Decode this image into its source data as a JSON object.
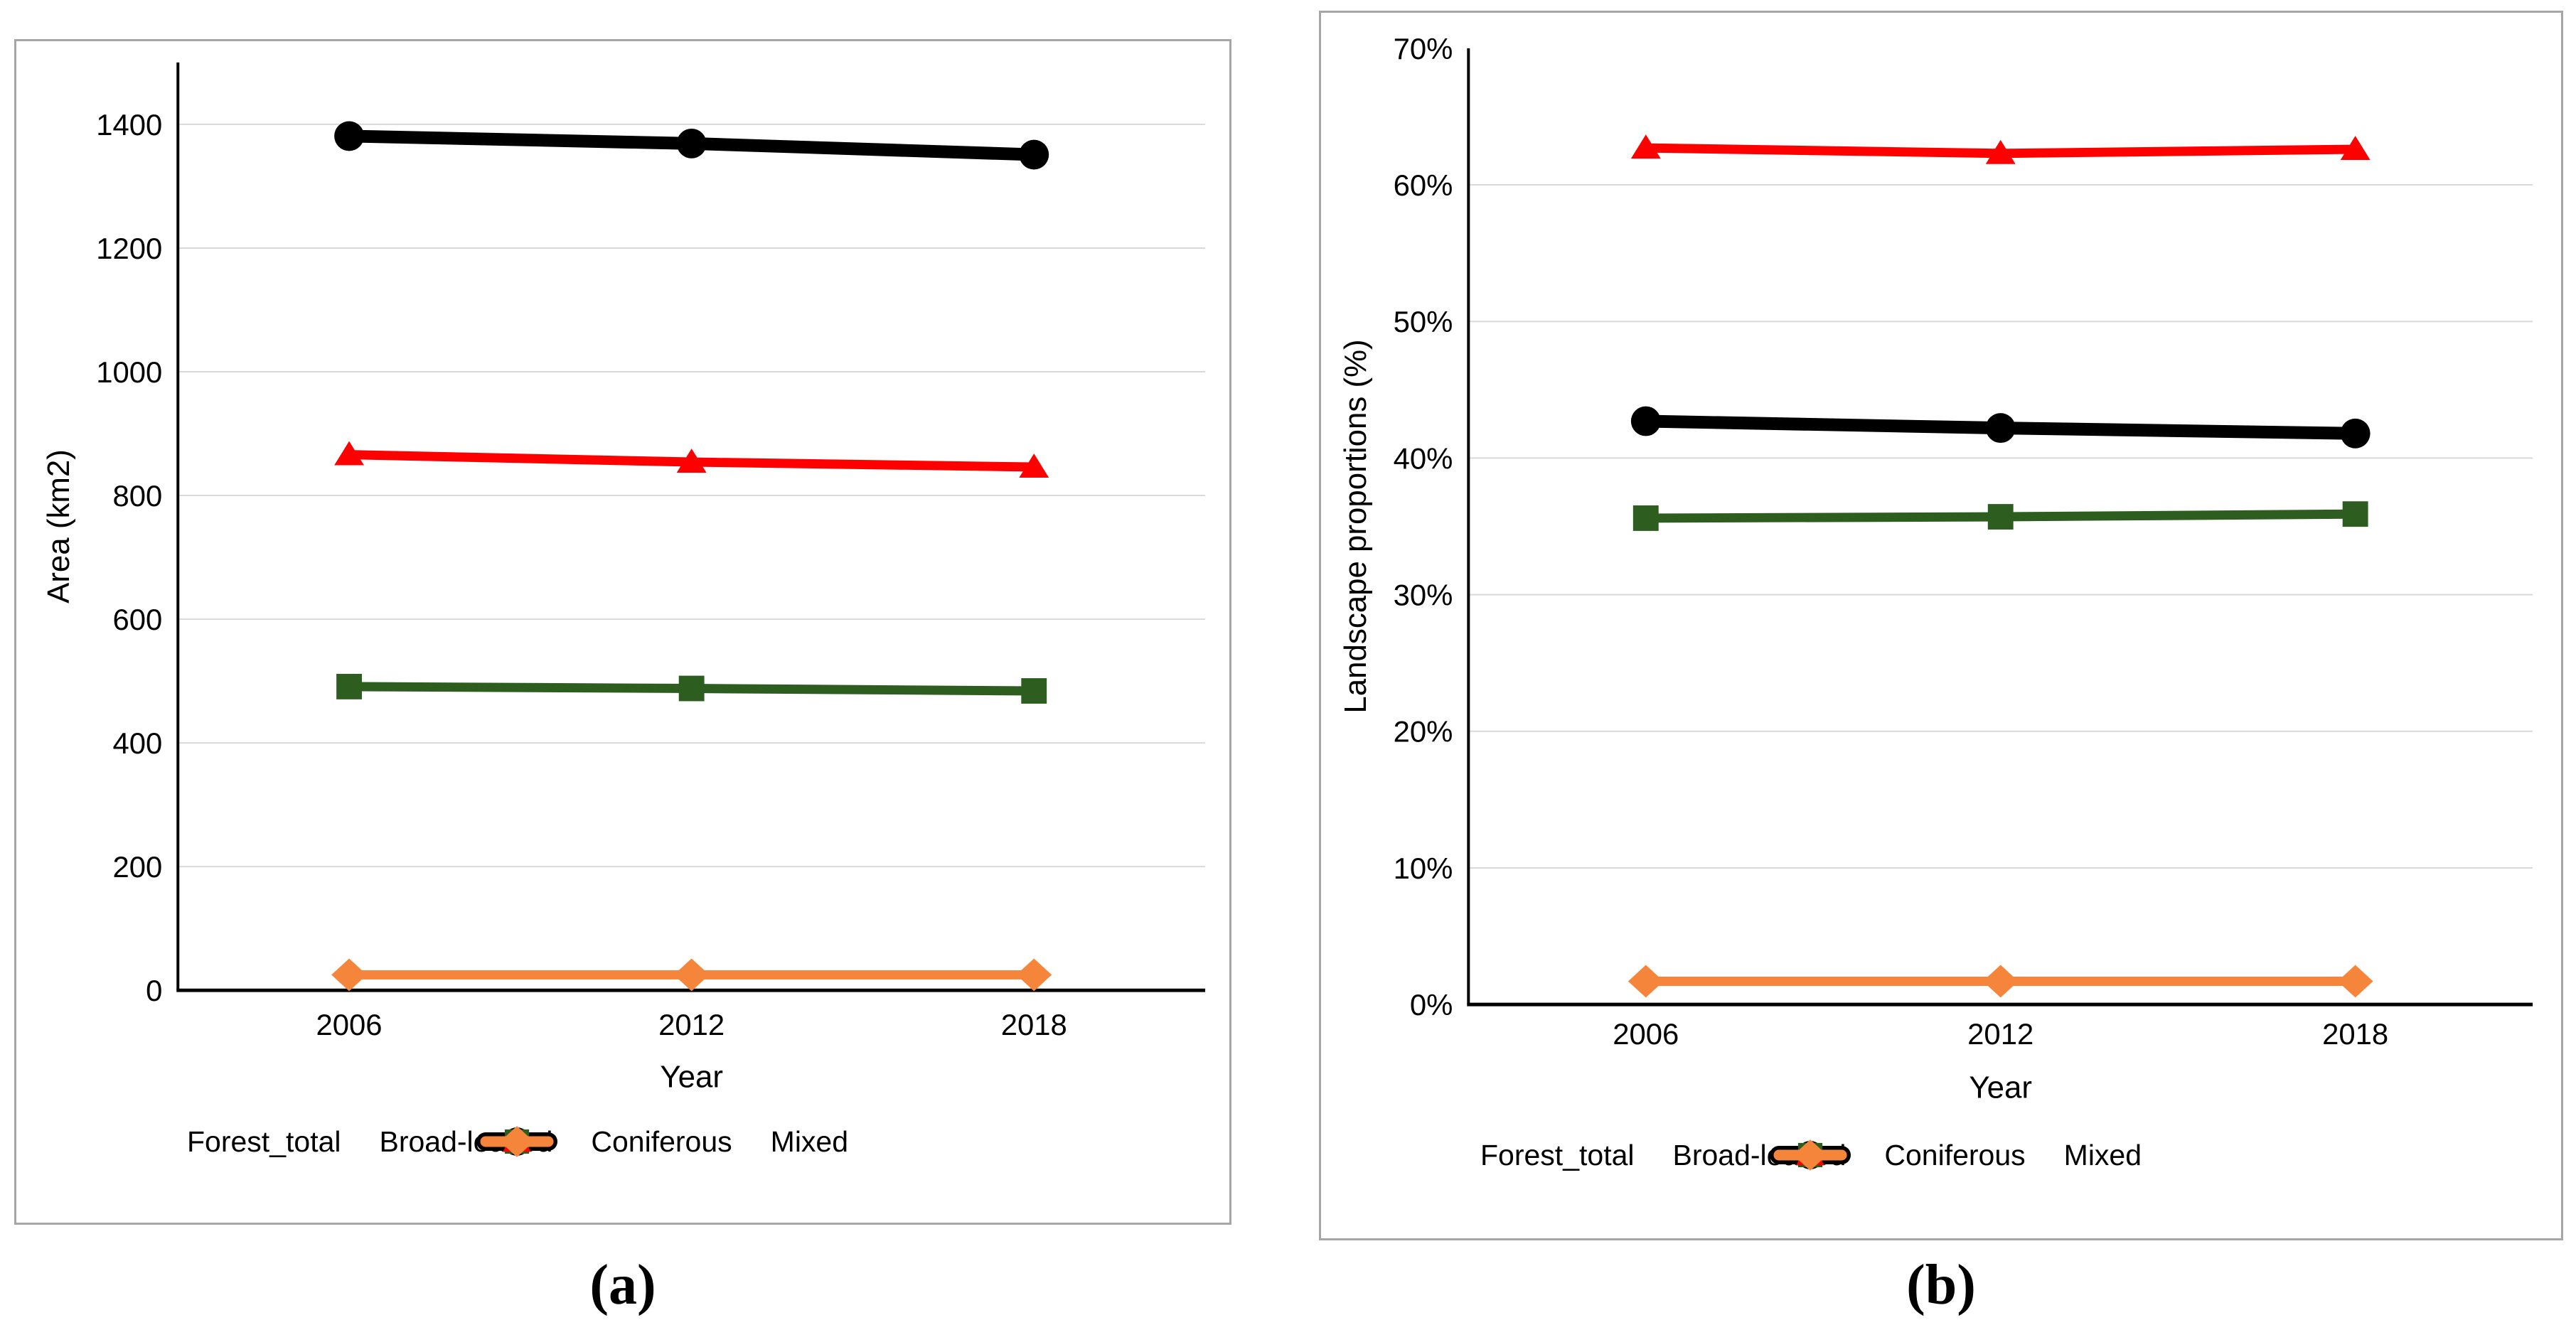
{
  "figure": {
    "caption_a": "(a)",
    "caption_b": "(b)"
  },
  "colors": {
    "axis": "#000000",
    "gridline": "#D9D9D9",
    "panel_border": "#A6A6A6",
    "text": "#000000"
  },
  "chart_data": [
    {
      "id": "a",
      "type": "line",
      "title": "",
      "xlabel": "Year",
      "ylabel": "Area (km2)",
      "categories": [
        "2006",
        "2012",
        "2018"
      ],
      "ylim": [
        0,
        1500
      ],
      "ytick_values": [
        0,
        200,
        400,
        600,
        800,
        1000,
        1200,
        1400
      ],
      "ytick_labels": [
        "0",
        "200",
        "400",
        "600",
        "800",
        "1000",
        "1200",
        "1400"
      ],
      "grid": true,
      "legend_position": "bottom",
      "series": [
        {
          "name": "Forest_total",
          "marker": "circle",
          "color": "#000000",
          "values": [
            1381,
            1369,
            1351
          ]
        },
        {
          "name": "Broad-leaved",
          "marker": "square",
          "color": "#2D5E1F",
          "values": [
            491,
            488,
            484
          ]
        },
        {
          "name": "Coniferous",
          "marker": "triangle",
          "color": "#FF0000",
          "values": [
            866,
            854,
            846
          ]
        },
        {
          "name": "Mixed",
          "marker": "diamond",
          "color": "#F6853C",
          "values": [
            25,
            25,
            25
          ]
        }
      ]
    },
    {
      "id": "b",
      "type": "line",
      "title": "",
      "xlabel": "Year",
      "ylabel": "Landscape proportions (%)",
      "categories": [
        "2006",
        "2012",
        "2018"
      ],
      "ylim": [
        0,
        70
      ],
      "ytick_values": [
        0,
        10,
        20,
        30,
        40,
        50,
        60,
        70
      ],
      "ytick_labels": [
        "0%",
        "10%",
        "20%",
        "30%",
        "40%",
        "50%",
        "60%",
        "70%"
      ],
      "grid": true,
      "legend_position": "bottom",
      "series": [
        {
          "name": "Forest_total",
          "marker": "circle",
          "color": "#000000",
          "values": [
            42.7,
            42.2,
            41.8
          ]
        },
        {
          "name": "Broad-leaved",
          "marker": "square",
          "color": "#2D5E1F",
          "values": [
            35.6,
            35.7,
            35.9
          ]
        },
        {
          "name": "Coniferous",
          "marker": "triangle",
          "color": "#FF0000",
          "values": [
            62.7,
            62.3,
            62.6
          ]
        },
        {
          "name": "Mixed",
          "marker": "diamond",
          "color": "#F6853C",
          "values": [
            1.7,
            1.7,
            1.7
          ]
        }
      ]
    }
  ]
}
